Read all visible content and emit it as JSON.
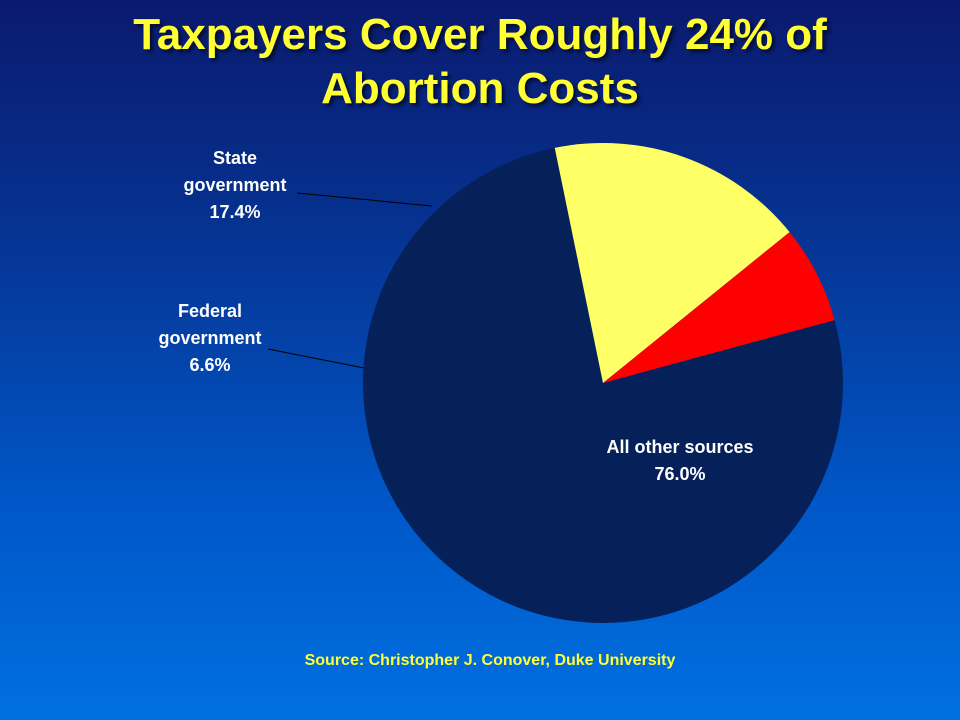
{
  "title_lines": [
    "Taxpayers Cover Roughly 24% of",
    "Abortion Costs"
  ],
  "chart_data": {
    "type": "pie",
    "slices": [
      {
        "name_lines": [
          "All other sources"
        ],
        "value": 76.0,
        "value_label": "76.0%",
        "color": "#06205a"
      },
      {
        "name_lines": [
          "State",
          "government"
        ],
        "value": 17.4,
        "value_label": "17.4%",
        "color": "#ffff66"
      },
      {
        "name_lines": [
          "Federal",
          "government"
        ],
        "value": 6.6,
        "value_label": "6.6%",
        "color": "#ff0000"
      }
    ]
  },
  "source": "Source: Christopher J. Conover, Duke University"
}
